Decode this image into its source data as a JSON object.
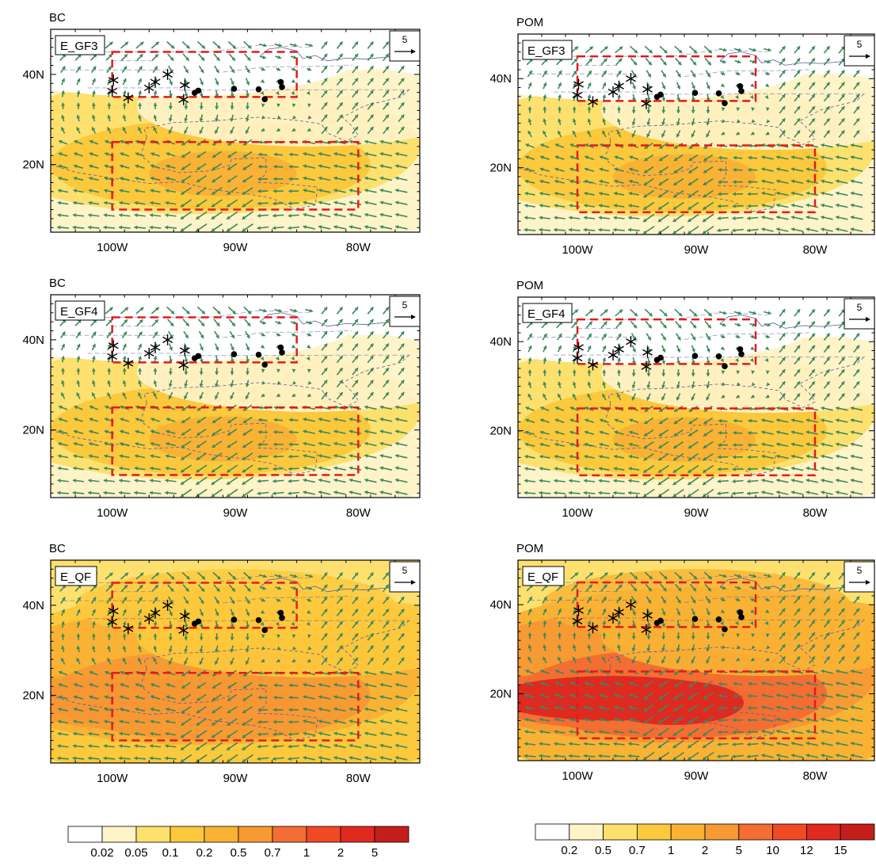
{
  "figure": {
    "left_species": "BC",
    "right_species": "POM",
    "experiments": [
      "E_GF3",
      "E_GF4",
      "E_QF"
    ],
    "lon_labels": [
      "100W",
      "90W",
      "80W"
    ],
    "lat_labels": [
      "40N",
      "20N"
    ],
    "vector_reference": "5"
  },
  "legends": {
    "bc": {
      "labels": [
        "0.02",
        "0.05",
        "0.1",
        "0.2",
        "0.5",
        "0.7",
        "1",
        "2",
        "5"
      ],
      "colors": [
        "#ffffff",
        "#fff3c8",
        "#fde06e",
        "#fcc83c",
        "#f9b233",
        "#f79a33",
        "#f46d32",
        "#ef4a24",
        "#e0291f",
        "#c41e1b"
      ]
    },
    "pom": {
      "labels": [
        "0.2",
        "0.5",
        "0.7",
        "1",
        "2",
        "5",
        "10",
        "12",
        "15"
      ],
      "colors": [
        "#ffffff",
        "#fff3c8",
        "#fde06e",
        "#fcc83c",
        "#f9b233",
        "#f79a33",
        "#f46d32",
        "#ef4a24",
        "#e0291f",
        "#c41e1b"
      ]
    }
  },
  "map_style": {
    "vector_color": "#3a8a5a",
    "box_color": "#e41a1c",
    "coast_color": "#5a5aa0"
  },
  "sites": {
    "asterisks": [
      [
        -99.9,
        38.7
      ],
      [
        -100.0,
        36.3
      ],
      [
        -98.7,
        34.8
      ],
      [
        -97.0,
        37.0
      ],
      [
        -96.5,
        38.3
      ],
      [
        -95.5,
        40.0
      ],
      [
        -94.1,
        37.6
      ],
      [
        -94.2,
        34.4
      ]
    ],
    "dots": [
      [
        -93.3,
        35.9
      ],
      [
        -93.0,
        36.4
      ],
      [
        -90.1,
        36.8
      ],
      [
        -88.1,
        36.7
      ],
      [
        -87.6,
        34.5
      ],
      [
        -86.3,
        38.3
      ],
      [
        -86.2,
        37.2
      ]
    ]
  },
  "boxes": {
    "north": {
      "lon": [
        -100,
        -85
      ],
      "lat": [
        35,
        45
      ]
    },
    "south": {
      "lon": [
        -100,
        -80
      ],
      "lat": [
        10,
        25
      ]
    }
  },
  "panels": [
    {
      "species": "BC",
      "experiment": "E_GF3",
      "intensity": 0
    },
    {
      "species": "POM",
      "experiment": "E_GF3",
      "intensity": 0
    },
    {
      "species": "BC",
      "experiment": "E_GF4",
      "intensity": 1
    },
    {
      "species": "POM",
      "experiment": "E_GF4",
      "intensity": 1
    },
    {
      "species": "BC",
      "experiment": "E_QF",
      "intensity": 2
    },
    {
      "species": "POM",
      "experiment": "E_QF",
      "intensity": 3
    }
  ]
}
